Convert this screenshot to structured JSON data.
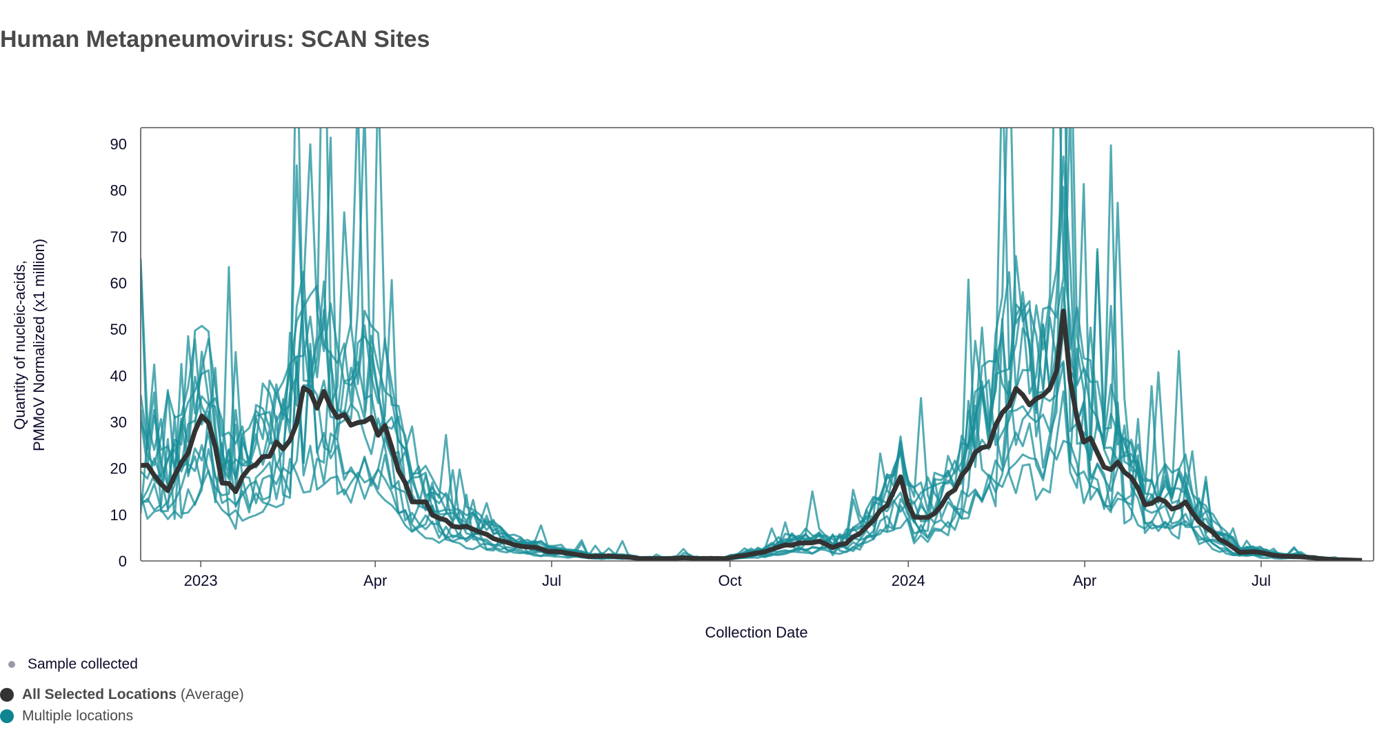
{
  "title": "Human Metapneumovirus: SCAN Sites",
  "colors": {
    "average": "#333333",
    "sites": "#1a8f99",
    "sample_dot": "#9a9aa6"
  },
  "legend": {
    "sample": "Sample collected",
    "average_bold": "All Selected Locations",
    "average_suffix": "(Average)",
    "sites": "Multiple locations"
  },
  "chart_data": {
    "type": "line",
    "title": "Human Metapneumovirus: SCAN Sites",
    "xlabel": "Collection Date",
    "ylabel_lines": [
      "Quantity of nucleic-acids,",
      "PMMoV Normalized (x1 million)"
    ],
    "ylim": [
      0,
      93.5
    ],
    "xlim": [
      "2022-12-01",
      "2024-08-28"
    ],
    "yticks": [
      0,
      10,
      20,
      30,
      40,
      50,
      60,
      70,
      80,
      90
    ],
    "xticks": [
      {
        "date": "2023-01-01",
        "label": "2023"
      },
      {
        "date": "2023-04-01",
        "label": "Apr"
      },
      {
        "date": "2023-07-01",
        "label": "Jul"
      },
      {
        "date": "2023-10-01",
        "label": "Oct"
      },
      {
        "date": "2024-01-01",
        "label": "2024"
      },
      {
        "date": "2024-04-01",
        "label": "Apr"
      },
      {
        "date": "2024-07-01",
        "label": "Jul"
      }
    ],
    "grid": false,
    "site_count": 12,
    "average": {
      "name": "All Selected Locations (Average)",
      "start": "2022-12-01",
      "interval_days": 7,
      "values": [
        21,
        19,
        16,
        20,
        30,
        30,
        18,
        16,
        19,
        22,
        24,
        26,
        37,
        35,
        34,
        31,
        32,
        29,
        28,
        20,
        12,
        12,
        9,
        8,
        7,
        6,
        5,
        4,
        3,
        3,
        2,
        2,
        1.5,
        1,
        1,
        1,
        0.8,
        0.5,
        0.5,
        0.5,
        0.7,
        0.5,
        0.5,
        0.5,
        1,
        1.5,
        2,
        3,
        3.5,
        4,
        4,
        3,
        4,
        6,
        9,
        12,
        17,
        9,
        10,
        12,
        15,
        20,
        25,
        28,
        36,
        38,
        33,
        35,
        52,
        30,
        25,
        20,
        22,
        18,
        12,
        13,
        12,
        13,
        8,
        6,
        4,
        2,
        2,
        1.5,
        1,
        1,
        0.8,
        0.5,
        0.3,
        0.2,
        0.1
      ]
    }
  }
}
